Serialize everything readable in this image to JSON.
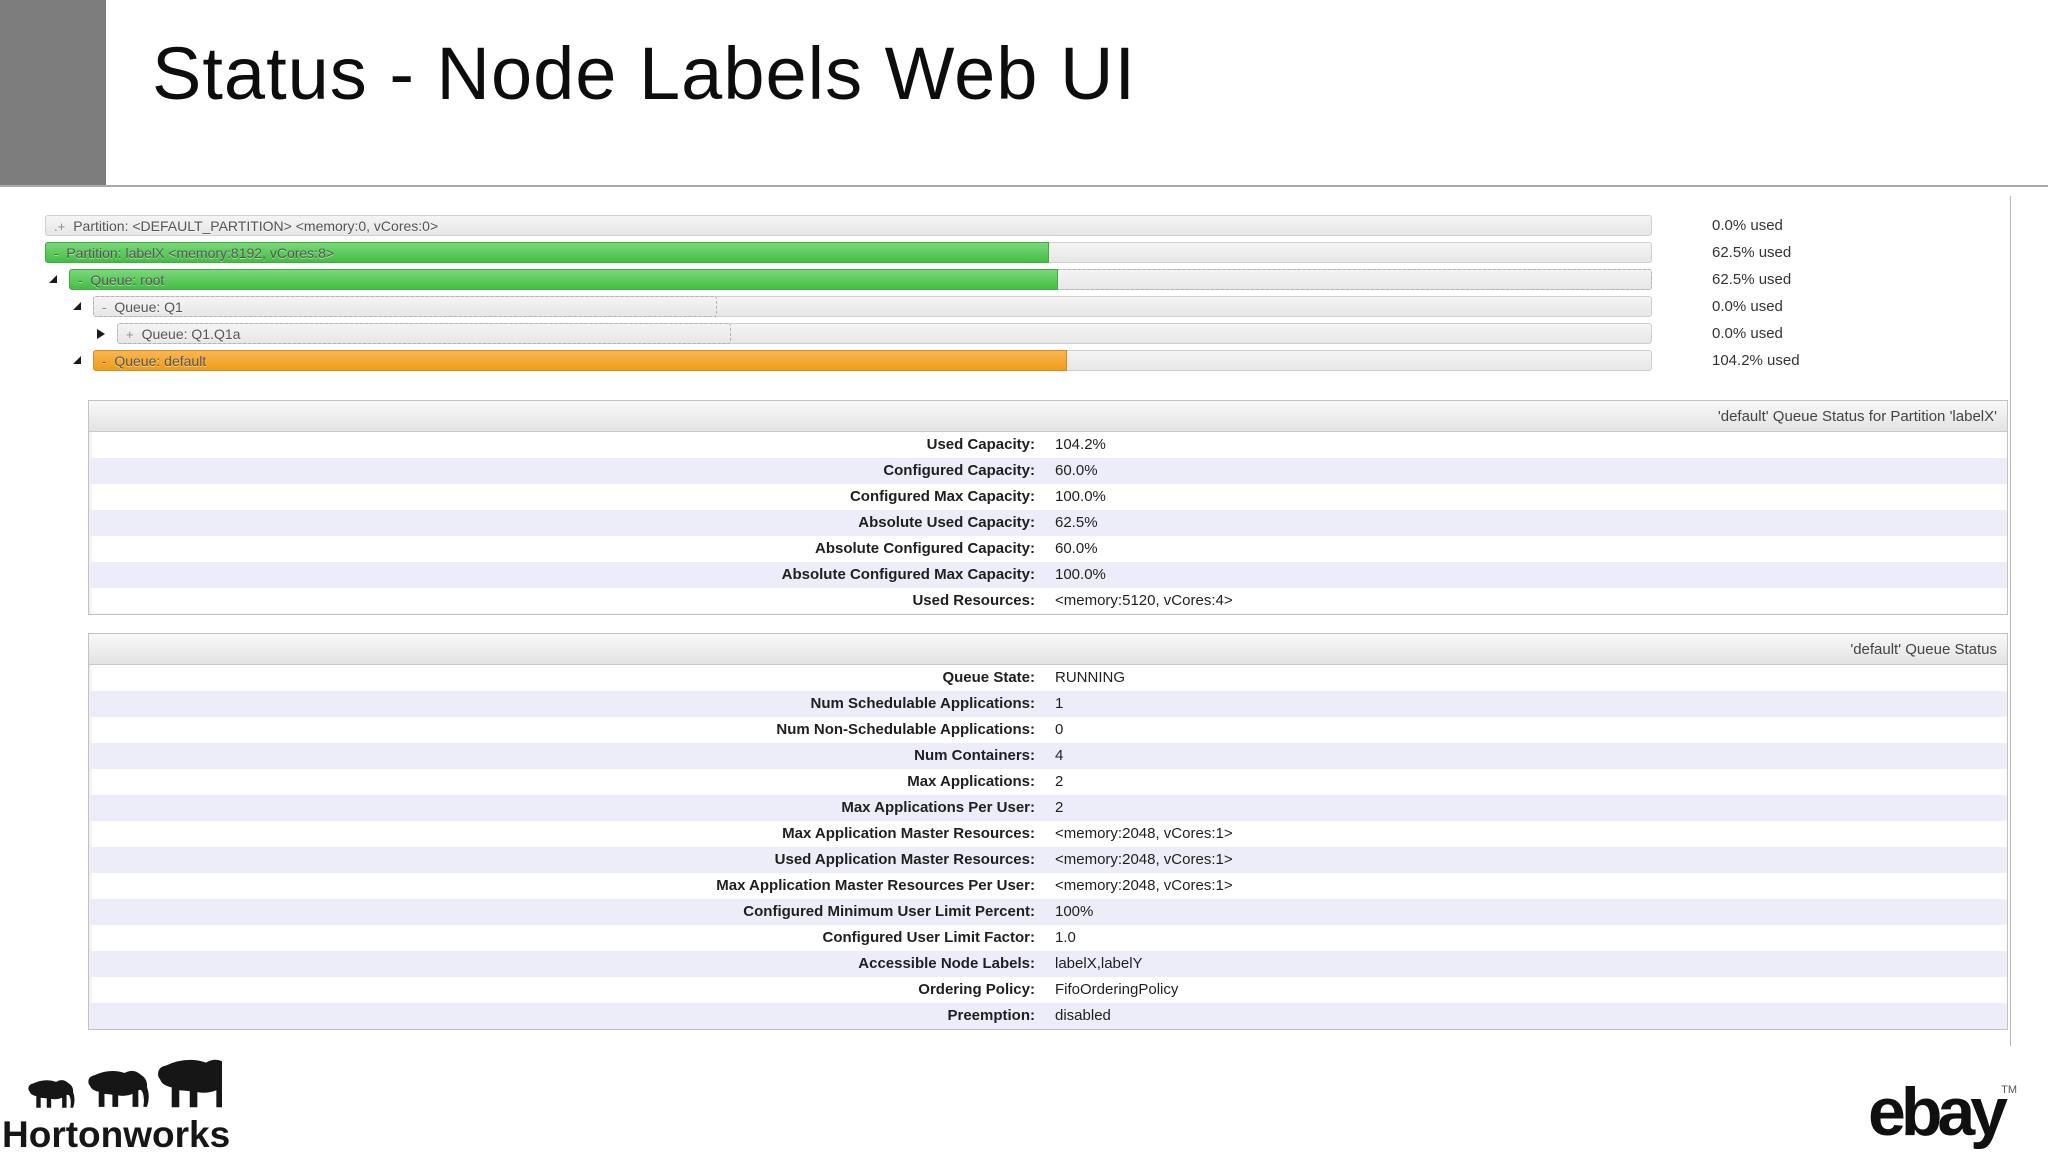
{
  "colors": {
    "green": "#45bd45",
    "orange": "#f09c18",
    "bar_track": "#ededed",
    "row_stripe": "#ecedf8",
    "corner_gray": "#7d7d7d"
  },
  "slide": {
    "title": "Status - Node Labels Web UI"
  },
  "tree": {
    "rows": [
      {
        "name": "partition-default",
        "prefix": ".+",
        "label": "Partition: <DEFAULT_PARTITION> <memory:0, vCores:0>",
        "used_label": "0.0% used",
        "fill_pct": 0,
        "dashed_pct": 0,
        "fill": "none",
        "arrow": "none",
        "indent": 0
      },
      {
        "name": "partition-labelx",
        "prefix": "-",
        "label": "Partition: labelX <memory:8192, vCores:8>",
        "used_label": "62.5% used",
        "fill_pct": 62.5,
        "dashed_pct": 0,
        "fill": "green",
        "arrow": "none",
        "indent": 0
      },
      {
        "name": "queue-root",
        "prefix": "-",
        "label": "Queue: root",
        "used_label": "62.5% used",
        "fill_pct": 62.5,
        "dashed_pct": 100,
        "fill": "green",
        "arrow": "expanded",
        "indent": 1
      },
      {
        "name": "queue-q1",
        "prefix": "-",
        "label": "Queue: Q1",
        "used_label": "0.0% used",
        "fill_pct": 0,
        "dashed_pct": 40,
        "fill": "none",
        "arrow": "expanded",
        "indent": 2
      },
      {
        "name": "queue-q1-q1a",
        "prefix": "+",
        "label": "Queue: Q1.Q1a",
        "used_label": "0.0% used",
        "fill_pct": 0,
        "dashed_pct": 40,
        "fill": "none",
        "arrow": "collapsed",
        "indent": 3
      },
      {
        "name": "queue-default",
        "prefix": "-",
        "label": "Queue: default",
        "used_label": "104.2% used",
        "fill_pct": 62.5,
        "dashed_pct": 60,
        "fill": "orange",
        "arrow": "expanded",
        "indent": 2
      }
    ]
  },
  "partition_status_table": {
    "title": "'default' Queue Status for Partition 'labelX'",
    "rows": [
      {
        "label": "Used Capacity:",
        "value": "104.2%"
      },
      {
        "label": "Configured Capacity:",
        "value": "60.0%"
      },
      {
        "label": "Configured Max Capacity:",
        "value": "100.0%"
      },
      {
        "label": "Absolute Used Capacity:",
        "value": "62.5%"
      },
      {
        "label": "Absolute Configured Capacity:",
        "value": "60.0%"
      },
      {
        "label": "Absolute Configured Max Capacity:",
        "value": "100.0%"
      },
      {
        "label": "Used Resources:",
        "value": "<memory:5120, vCores:4>"
      }
    ]
  },
  "queue_status_table": {
    "title": "'default' Queue Status",
    "rows": [
      {
        "label": "Queue State:",
        "value": "RUNNING"
      },
      {
        "label": "Num Schedulable Applications:",
        "value": "1"
      },
      {
        "label": "Num Non-Schedulable Applications:",
        "value": "0"
      },
      {
        "label": "Num Containers:",
        "value": "4"
      },
      {
        "label": "Max Applications:",
        "value": "2"
      },
      {
        "label": "Max Applications Per User:",
        "value": "2"
      },
      {
        "label": "Max Application Master Resources:",
        "value": "<memory:2048, vCores:1>"
      },
      {
        "label": "Used Application Master Resources:",
        "value": "<memory:2048, vCores:1>"
      },
      {
        "label": "Max Application Master Resources Per User:",
        "value": "<memory:2048, vCores:1>"
      },
      {
        "label": "Configured Minimum User Limit Percent:",
        "value": "100%"
      },
      {
        "label": "Configured User Limit Factor:",
        "value": "1.0"
      },
      {
        "label": "Accessible Node Labels:",
        "value": "labelX,labelY"
      },
      {
        "label": "Ordering Policy:",
        "value": "FifoOrderingPolicy"
      },
      {
        "label": "Preemption:",
        "value": "disabled"
      }
    ]
  },
  "footer": {
    "hortonworks_label": "Hortonworks",
    "ebay_label": "ebay",
    "ebay_tm": "TM"
  }
}
